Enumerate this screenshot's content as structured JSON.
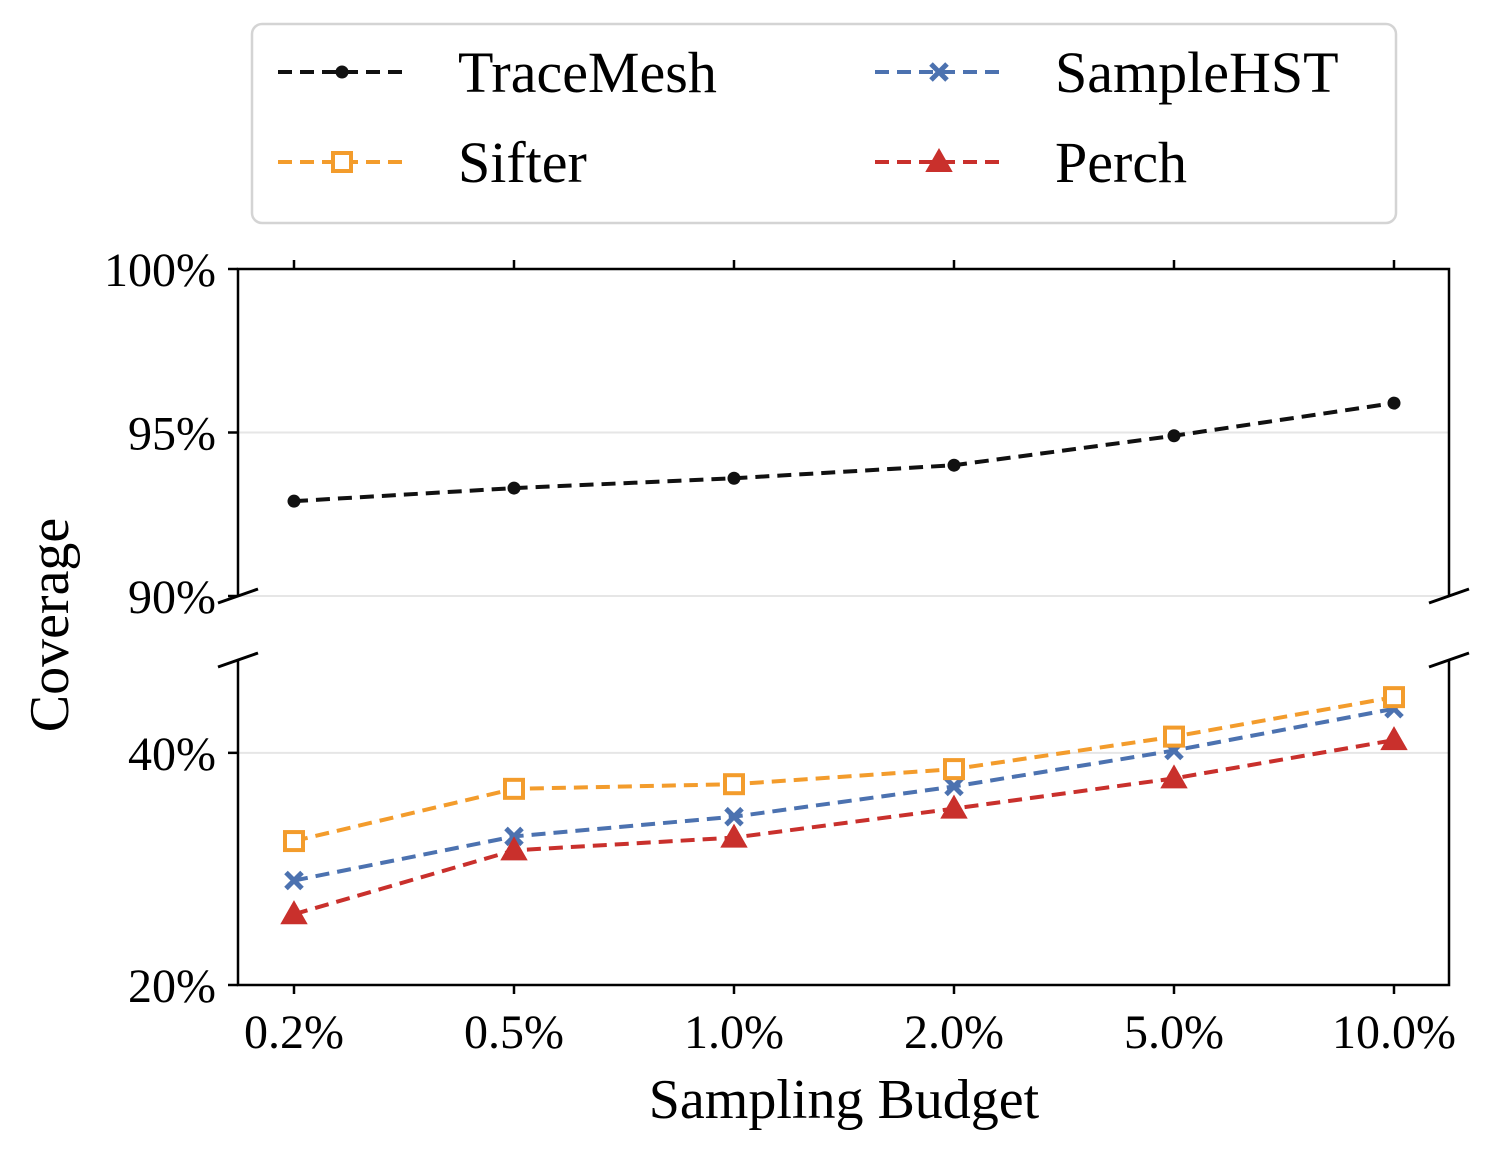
{
  "chart_data": {
    "type": "line",
    "broken_axis": true,
    "xlabel": "Sampling Budget",
    "ylabel": "Coverage",
    "categories": [
      "0.2%",
      "0.5%",
      "1.0%",
      "2.0%",
      "5.0%",
      "10.0%"
    ],
    "top_panel": {
      "ylim": [
        90,
        100
      ],
      "yticks": [
        90,
        95,
        100
      ],
      "ytick_labels": [
        "90%",
        "95%",
        "100%"
      ]
    },
    "bottom_panel": {
      "ylim": [
        20,
        48
      ],
      "yticks": [
        20,
        40
      ],
      "ytick_labels": [
        "20%",
        "40%"
      ]
    },
    "grid": "horizontal",
    "legend": {
      "placement": "top-center",
      "columns": 2
    },
    "series": [
      {
        "name": "TraceMesh",
        "color": "#111111",
        "marker": "dot",
        "panel": "top",
        "values": [
          92.9,
          93.3,
          93.6,
          94.0,
          94.9,
          95.9
        ]
      },
      {
        "name": "SampleHST",
        "color": "#4c72b0",
        "marker": "x",
        "panel": "bottom",
        "values": [
          29.0,
          32.8,
          34.5,
          37.1,
          40.2,
          43.8
        ]
      },
      {
        "name": "Sifter",
        "color": "#f39c2c",
        "marker": "square",
        "panel": "bottom",
        "values": [
          32.4,
          36.9,
          37.3,
          38.6,
          41.4,
          44.8
        ]
      },
      {
        "name": "Perch",
        "color": "#c9302c",
        "marker": "triangle",
        "panel": "bottom",
        "values": [
          26.1,
          31.6,
          32.7,
          35.2,
          37.8,
          41.1
        ]
      }
    ]
  }
}
